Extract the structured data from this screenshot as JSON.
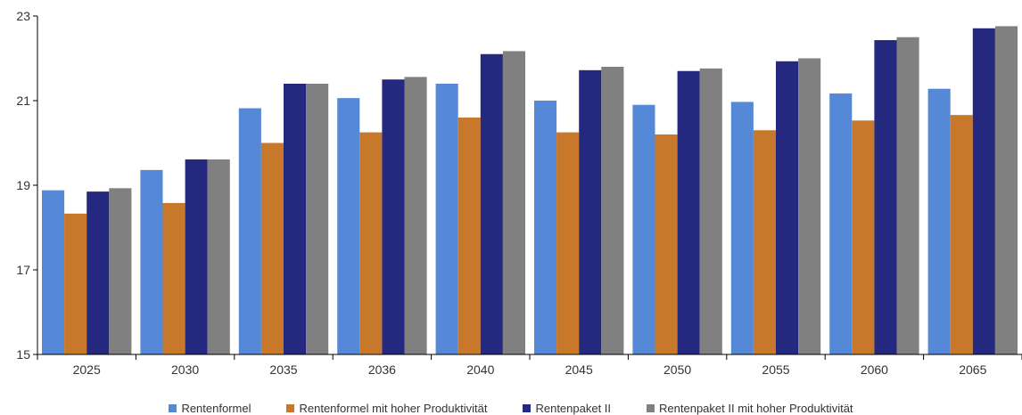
{
  "chart_data": {
    "type": "bar",
    "title": "",
    "xlabel": "",
    "ylabel": "",
    "ylim": [
      15,
      23
    ],
    "yticks": [
      15,
      17,
      19,
      21,
      23
    ],
    "grid": false,
    "legend_position": "bottom",
    "categories": [
      "2025",
      "2030",
      "2035",
      "2036",
      "2040",
      "2045",
      "2050",
      "2055",
      "2060",
      "2065"
    ],
    "series": [
      {
        "name": "Rentenformel",
        "color": "#5588d6",
        "values": [
          18.88,
          19.36,
          20.82,
          21.06,
          21.4,
          21.0,
          20.9,
          20.97,
          21.17,
          21.28
        ]
      },
      {
        "name": "Rentenformel mit hoher Produktivität",
        "color": "#c8782a",
        "values": [
          18.33,
          18.58,
          20.0,
          20.25,
          20.6,
          20.25,
          20.2,
          20.3,
          20.53,
          20.66
        ]
      },
      {
        "name": "Rentenpaket II",
        "color": "#24287e",
        "values": [
          18.85,
          19.61,
          21.4,
          21.5,
          22.1,
          21.72,
          21.7,
          21.93,
          22.43,
          22.71
        ]
      },
      {
        "name": "Rentenpaket II mit hoher Produktivität",
        "color": "#808080",
        "values": [
          18.93,
          19.61,
          21.4,
          21.56,
          22.17,
          21.8,
          21.76,
          22.0,
          22.5,
          22.76
        ]
      }
    ]
  }
}
